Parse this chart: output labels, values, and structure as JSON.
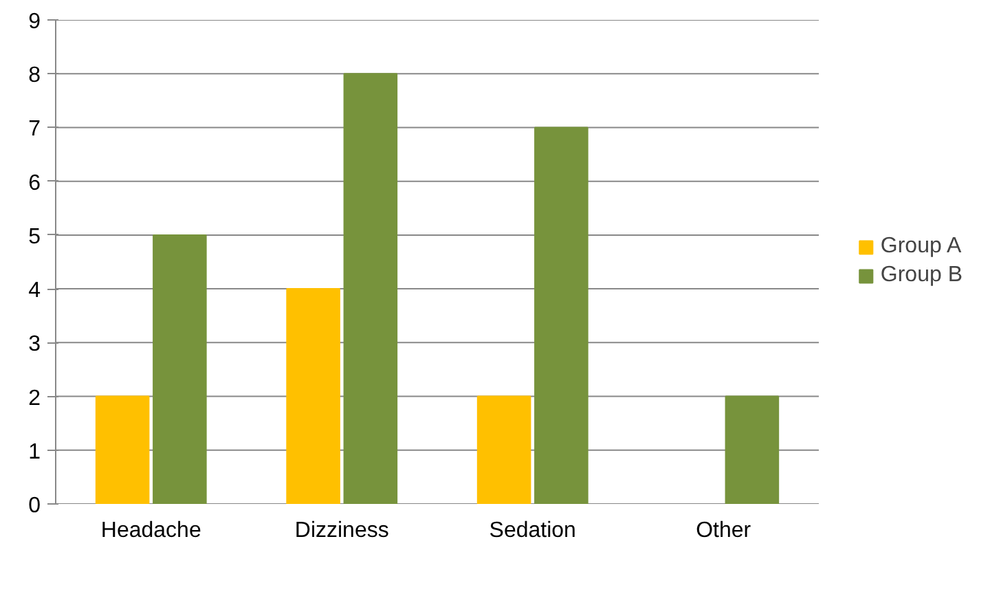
{
  "chart_data": {
    "type": "bar",
    "categories": [
      "Headache",
      "Dizziness",
      "Sedation",
      "Other"
    ],
    "series": [
      {
        "name": "Group A",
        "color": "#ffc000",
        "values": [
          2,
          4,
          2,
          null
        ]
      },
      {
        "name": "Group B",
        "color": "#77933c",
        "values": [
          5,
          8,
          7,
          2
        ]
      }
    ],
    "ylim": [
      0,
      9
    ],
    "yticks": [
      0,
      1,
      2,
      3,
      4,
      5,
      6,
      7,
      8,
      9
    ],
    "grid": "y",
    "legend": "right"
  }
}
